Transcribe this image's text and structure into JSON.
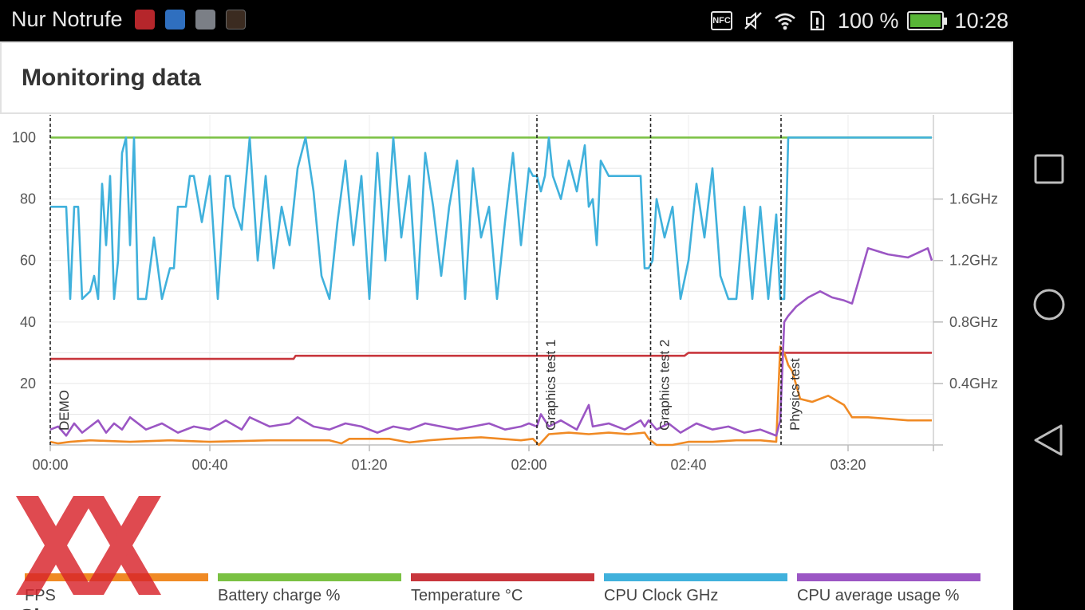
{
  "status_bar": {
    "left_text": "Nur Notrufe",
    "app_icons": [
      "antutu-icon",
      "health-icon",
      "gallery-icon",
      "swift-icon"
    ],
    "icons": [
      "nfc-icon",
      "mute-icon",
      "wifi-icon",
      "sim-icon"
    ],
    "nfc_label": "NFC",
    "battery_percent": "100 %",
    "battery_level": 1.0,
    "clock": "10:28"
  },
  "page": {
    "title": "Monitoring data",
    "next_heading": "Sl"
  },
  "colors": {
    "fps": "#f08a24",
    "battery": "#7ac143",
    "temperature": "#c8363c",
    "cpu_clock": "#40b1dc",
    "cpu_usage": "#9b56c4"
  },
  "legend": [
    {
      "key": "fps",
      "label": "FPS"
    },
    {
      "key": "battery",
      "label": "Battery charge %"
    },
    {
      "key": "temperature",
      "label": "Temperature °C"
    },
    {
      "key": "cpu_clock",
      "label": "CPU Clock GHz"
    },
    {
      "key": "cpu_usage",
      "label": "CPU average usage %"
    }
  ],
  "chart_data": {
    "type": "line",
    "x_unit": "seconds",
    "x_range": [
      0,
      200
    ],
    "x_ticks": [
      {
        "value": 0,
        "label": "00:00"
      },
      {
        "value": 40,
        "label": "00:40"
      },
      {
        "value": 80,
        "label": "01:20"
      },
      {
        "value": 120,
        "label": "02:00"
      },
      {
        "value": 160,
        "label": "02:40"
      },
      {
        "value": 200,
        "label": "03:20"
      }
    ],
    "y_left": {
      "range": [
        0,
        110
      ],
      "ticks": [
        20,
        40,
        60,
        80,
        100
      ],
      "tick_labels": [
        "20",
        "40",
        "60",
        "80",
        "100"
      ]
    },
    "y_right": {
      "range": [
        0,
        2.2
      ],
      "ticks": [
        0.4,
        0.8,
        1.2,
        1.6
      ],
      "tick_labels": [
        "0.4GHz",
        "0.8GHz",
        "1.2GHz",
        "1.6GHz"
      ]
    },
    "grid": true,
    "markers": [
      {
        "x": 0,
        "label": "DEMO"
      },
      {
        "x": 122,
        "label": "Graphics test 1"
      },
      {
        "x": 150.5,
        "label": "Graphics test 2"
      },
      {
        "x": 183.2,
        "label": "Physics test"
      }
    ],
    "series": [
      {
        "key": "battery",
        "axis": "left",
        "x": [
          0,
          221
        ],
        "y": [
          100,
          100
        ]
      },
      {
        "key": "temperature",
        "axis": "left",
        "x": [
          0,
          61,
          61.5,
          122,
          122.5,
          159,
          160,
          221
        ],
        "y": [
          28,
          28,
          29,
          29,
          29,
          29,
          30,
          30
        ]
      },
      {
        "key": "fps",
        "axis": "left",
        "x": [
          0,
          2,
          5,
          10,
          20,
          30,
          40,
          55,
          70,
          73,
          75,
          85,
          90,
          95,
          100,
          108,
          113,
          118,
          121,
          122.5,
          125,
          130,
          135,
          140,
          145,
          149,
          150,
          152,
          156,
          160,
          166,
          172,
          178,
          182,
          183,
          184,
          185,
          186,
          188,
          191,
          195,
          199,
          201,
          205,
          210,
          215,
          220,
          221
        ],
        "y": [
          1,
          0.5,
          1,
          1.5,
          1,
          1.5,
          1,
          1.5,
          1.5,
          0.5,
          2,
          2,
          0.8,
          1.5,
          2,
          2.5,
          2,
          1.5,
          2,
          0,
          3.5,
          4,
          3.5,
          4,
          3.5,
          4,
          2,
          0,
          0,
          1,
          1,
          1.5,
          1.5,
          1,
          32,
          30,
          26,
          24,
          15,
          14,
          16,
          13,
          9,
          9,
          8.5,
          8,
          8,
          8
        ]
      },
      {
        "key": "cpu_usage",
        "axis": "left",
        "x": [
          0,
          2,
          4,
          6,
          8,
          10,
          12,
          14,
          16,
          18,
          20,
          24,
          28,
          32,
          36,
          40,
          44,
          48,
          50,
          55,
          60,
          62,
          66,
          70,
          74,
          78,
          82,
          86,
          90,
          94,
          98,
          102,
          106,
          110,
          114,
          118,
          120,
          122,
          123,
          125,
          128,
          132,
          135,
          136,
          140,
          144,
          148,
          149,
          150,
          152,
          155,
          158,
          162,
          166,
          170,
          174,
          178,
          182,
          183,
          184,
          185,
          187,
          190,
          193,
          196,
          199,
          201,
          205,
          210,
          215,
          220,
          221
        ],
        "y": [
          5,
          6,
          3,
          7,
          4,
          6,
          8,
          4,
          7,
          5,
          9,
          5,
          7,
          4,
          6,
          5,
          8,
          5,
          9,
          6,
          7,
          9,
          6,
          5,
          7,
          6,
          4,
          6,
          5,
          7,
          6,
          5,
          6,
          7,
          5,
          6,
          7,
          6,
          10,
          6,
          8,
          5,
          13,
          6,
          7,
          5,
          8,
          6,
          8,
          5,
          7,
          4,
          7,
          5,
          6,
          4,
          5,
          3,
          8,
          40,
          42,
          45,
          48,
          50,
          48,
          47,
          46,
          64,
          62,
          61,
          64,
          60
        ]
      },
      {
        "key": "cpu_clock",
        "axis": "right",
        "x": [
          0,
          4,
          5,
          6,
          7,
          8,
          10,
          11,
          12,
          13,
          14,
          15,
          16,
          17,
          18,
          19,
          20,
          21,
          22,
          24,
          26,
          28,
          30,
          31,
          32,
          34,
          35,
          36,
          38,
          40,
          42,
          44,
          45,
          46,
          48,
          50,
          52,
          54,
          56,
          58,
          60,
          62,
          64,
          66,
          68,
          70,
          72,
          74,
          76,
          78,
          80,
          82,
          84,
          86,
          88,
          90,
          92,
          94,
          96,
          98,
          100,
          102,
          104,
          106,
          108,
          110,
          112,
          114,
          116,
          118,
          120,
          121,
          122,
          123,
          124,
          125,
          126,
          128,
          130,
          132,
          134,
          135,
          136,
          137,
          138,
          140,
          144,
          148,
          149,
          150,
          151,
          152,
          154,
          156,
          158,
          160,
          162,
          164,
          166,
          168,
          170,
          172,
          174,
          176,
          178,
          180,
          182,
          183,
          184,
          185,
          221
        ],
        "y": [
          1.55,
          1.55,
          0.95,
          1.55,
          1.55,
          0.95,
          1.0,
          1.1,
          0.95,
          1.7,
          1.3,
          1.75,
          0.95,
          1.2,
          1.9,
          2.0,
          1.3,
          2.0,
          0.95,
          0.95,
          1.35,
          0.95,
          1.15,
          1.15,
          1.55,
          1.55,
          1.75,
          1.75,
          1.45,
          1.75,
          0.95,
          1.75,
          1.75,
          1.55,
          1.4,
          2.0,
          1.2,
          1.75,
          1.15,
          1.55,
          1.3,
          1.8,
          2.0,
          1.65,
          1.1,
          0.95,
          1.45,
          1.85,
          1.3,
          1.75,
          0.95,
          1.9,
          1.2,
          2.0,
          1.35,
          1.75,
          0.95,
          1.9,
          1.55,
          1.1,
          1.55,
          1.85,
          0.95,
          1.8,
          1.35,
          1.55,
          0.95,
          1.45,
          1.9,
          1.3,
          1.8,
          1.75,
          1.75,
          1.65,
          1.75,
          2.0,
          1.75,
          1.6,
          1.85,
          1.65,
          1.95,
          1.55,
          1.6,
          1.3,
          1.85,
          1.75,
          1.75,
          1.75,
          1.15,
          1.15,
          1.2,
          1.6,
          1.35,
          1.55,
          0.95,
          1.2,
          1.7,
          1.35,
          1.8,
          1.1,
          0.95,
          0.95,
          1.55,
          0.95,
          1.55,
          0.95,
          1.5,
          0.95,
          0.95,
          2.0,
          2.0
        ]
      }
    ]
  }
}
